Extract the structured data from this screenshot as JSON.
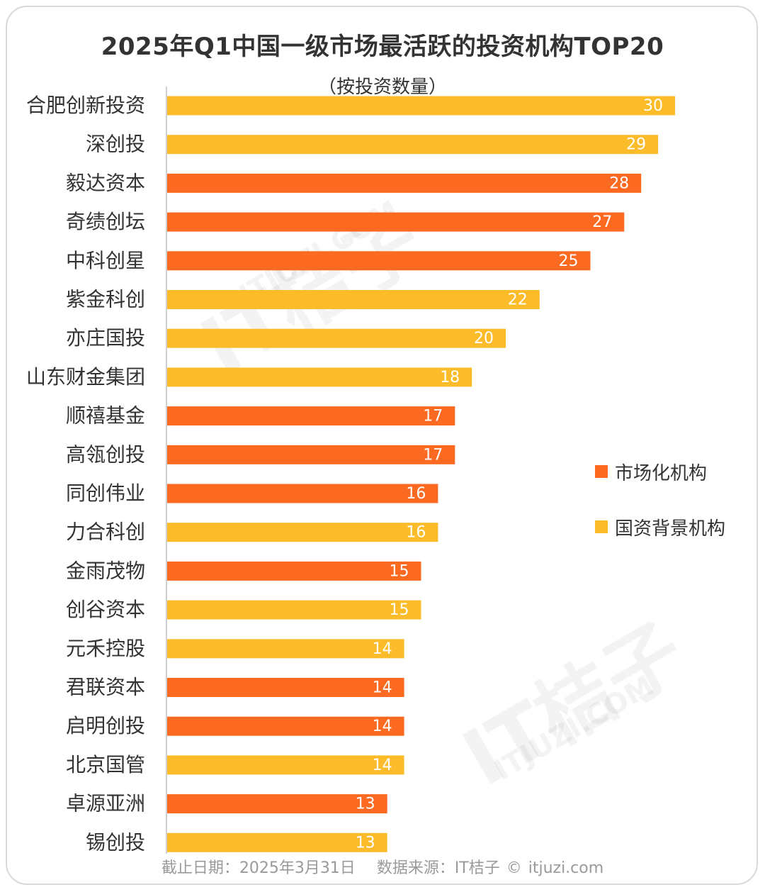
{
  "title": "2025年Q1中国一级市场最活跃的投资机构TOP20",
  "subtitle": "（按投资数量）",
  "footer": {
    "date": "截止日期：2025年3月31日",
    "source": "数据来源：IT桔子 © itjuzi.com"
  },
  "watermark": {
    "brand": "IT桔子",
    "domain": "ITJUZI.COM"
  },
  "colors": {
    "market": "#fc6920",
    "state": "#fcbc2a",
    "axis": "#d0d0d0",
    "label": "#333333",
    "value": "#ffffff"
  },
  "legend": [
    {
      "key": "market",
      "label": "市场化机构"
    },
    {
      "key": "state",
      "label": "国资背景机构"
    }
  ],
  "chart_data": {
    "type": "bar",
    "orientation": "horizontal",
    "title": "2025年Q1中国一级市场最活跃的投资机构TOP20",
    "subtitle": "（按投资数量）",
    "xlabel": "",
    "ylabel": "",
    "xlim": [
      0,
      30
    ],
    "grid": false,
    "legend_position": "right",
    "categories": [
      "合肥创新投资",
      "深创投",
      "毅达资本",
      "奇绩创坛",
      "中科创星",
      "紫金科创",
      "亦庄国投",
      "山东财金集团",
      "顺禧基金",
      "高瓴创投",
      "同创伟业",
      "力合科创",
      "金雨茂物",
      "创谷资本",
      "元禾控股",
      "君联资本",
      "启明创投",
      "北京国管",
      "卓源亚洲",
      "锡创投"
    ],
    "values": [
      30,
      29,
      28,
      27,
      25,
      22,
      20,
      18,
      17,
      17,
      16,
      16,
      15,
      15,
      14,
      14,
      14,
      14,
      13,
      13
    ],
    "types": [
      "state",
      "state",
      "market",
      "market",
      "market",
      "state",
      "state",
      "state",
      "market",
      "market",
      "market",
      "state",
      "market",
      "state",
      "state",
      "market",
      "market",
      "state",
      "market",
      "state"
    ]
  }
}
